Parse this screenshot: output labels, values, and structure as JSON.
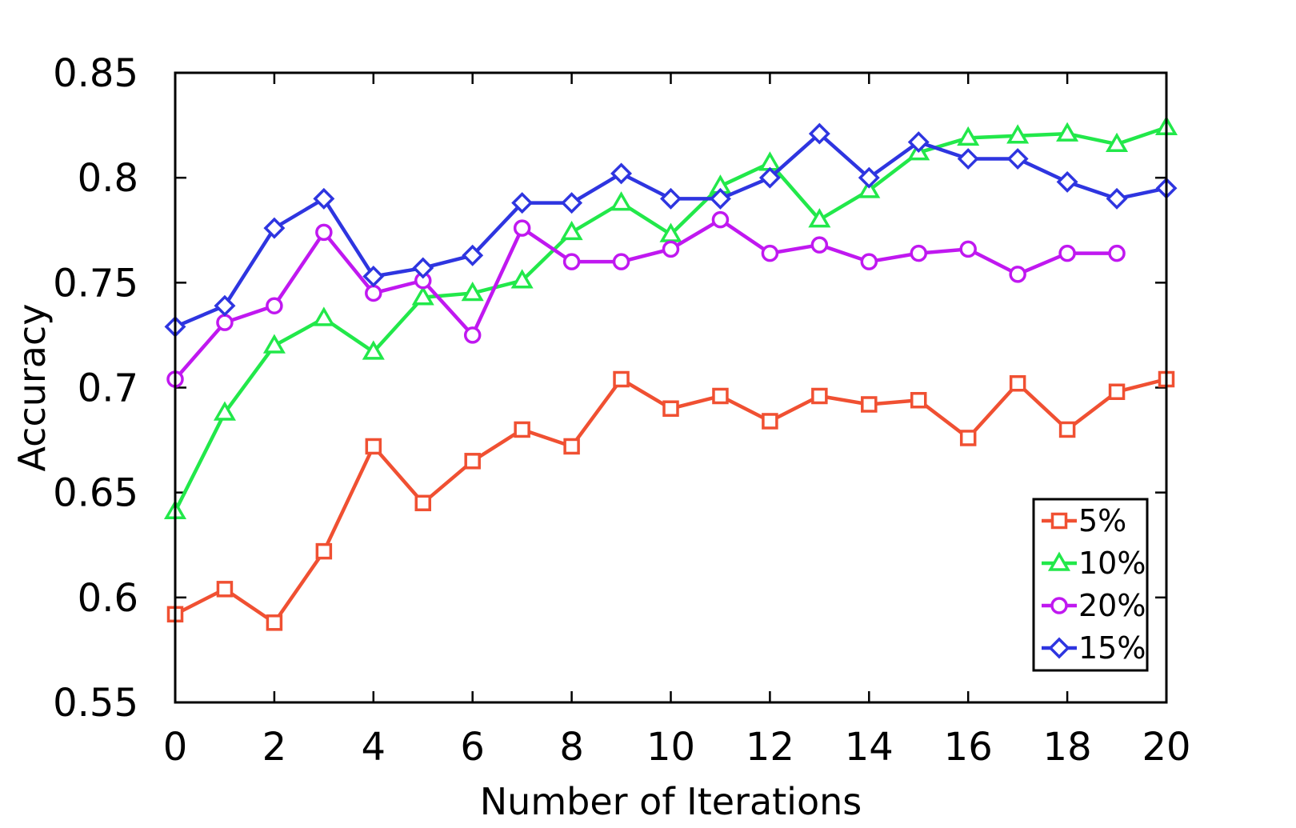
{
  "chart_data": {
    "type": "line",
    "xlabel": "Number of Iterations",
    "ylabel": "Accuracy",
    "xlim": [
      0,
      20
    ],
    "ylim": [
      0.55,
      0.85
    ],
    "xticks": [
      "0",
      "2",
      "4",
      "6",
      "8",
      "10",
      "12",
      "14",
      "16",
      "18",
      "20"
    ],
    "yticks": [
      "0.55",
      "0.6",
      "0.65",
      "0.7",
      "0.75",
      "0.8",
      "0.85"
    ],
    "grid": false,
    "legend_position": "bottom-right",
    "series": [
      {
        "name": "5%",
        "color": "#f05032",
        "marker": "square",
        "x": [
          0,
          1,
          2,
          3,
          4,
          5,
          6,
          7,
          8,
          9,
          10,
          11,
          12,
          13,
          14,
          15,
          16,
          17,
          18,
          19,
          20
        ],
        "y": [
          0.592,
          0.604,
          0.588,
          0.622,
          0.672,
          0.645,
          0.665,
          0.68,
          0.672,
          0.704,
          0.69,
          0.696,
          0.684,
          0.696,
          0.692,
          0.694,
          0.676,
          0.702,
          0.68,
          0.698,
          0.704
        ]
      },
      {
        "name": "10%",
        "color": "#22e84a",
        "marker": "triangle",
        "x": [
          0,
          1,
          2,
          3,
          4,
          5,
          6,
          7,
          8,
          9,
          10,
          11,
          12,
          13,
          14,
          15,
          16,
          17,
          18,
          19,
          20
        ],
        "y": [
          0.641,
          0.688,
          0.72,
          0.733,
          0.717,
          0.743,
          0.745,
          0.751,
          0.774,
          0.788,
          0.773,
          0.796,
          0.807,
          0.78,
          0.794,
          0.812,
          0.819,
          0.82,
          0.821,
          0.816,
          0.824
        ]
      },
      {
        "name": "20%",
        "color": "#c018f0",
        "marker": "circle",
        "x": [
          0,
          1,
          2,
          3,
          4,
          5,
          6,
          7,
          8,
          9,
          10,
          11,
          12,
          13,
          14,
          15,
          16,
          17,
          18,
          19
        ],
        "y": [
          0.704,
          0.731,
          0.739,
          0.774,
          0.745,
          0.751,
          0.725,
          0.776,
          0.76,
          0.76,
          0.766,
          0.78,
          0.764,
          0.768,
          0.76,
          0.764,
          0.766,
          0.754,
          0.764,
          0.764
        ]
      },
      {
        "name": "15%",
        "color": "#2e35e0",
        "marker": "diamond",
        "x": [
          0,
          1,
          2,
          3,
          4,
          5,
          6,
          7,
          8,
          9,
          10,
          11,
          12,
          13,
          14,
          15,
          16,
          17,
          18,
          19,
          20
        ],
        "y": [
          0.729,
          0.739,
          0.776,
          0.79,
          0.753,
          0.757,
          0.763,
          0.788,
          0.788,
          0.802,
          0.79,
          0.79,
          0.8,
          0.821,
          0.8,
          0.817,
          0.809,
          0.809,
          0.798,
          0.79,
          0.795
        ]
      }
    ]
  }
}
